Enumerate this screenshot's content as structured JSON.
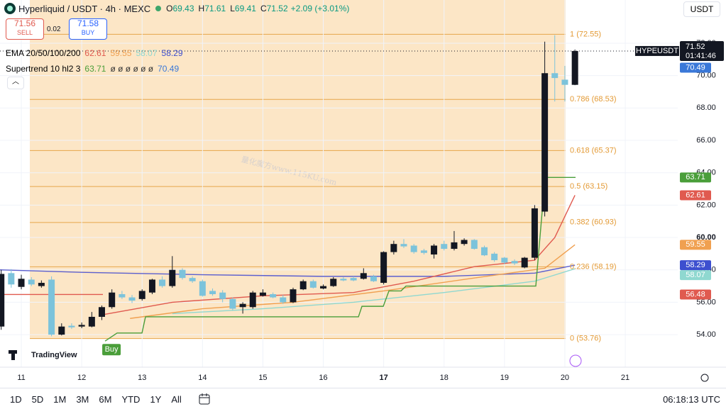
{
  "chart_data": {
    "type": "candlestick",
    "x": [
      10.667,
      10.833,
      11,
      11.167,
      11.333,
      11.5,
      11.667,
      11.833,
      12,
      12.167,
      12.333,
      12.5,
      12.667,
      12.833,
      13,
      13.167,
      13.333,
      13.5,
      13.667,
      13.833,
      14,
      14.167,
      14.333,
      14.5,
      14.667,
      14.833,
      15,
      15.167,
      15.333,
      15.5,
      15.667,
      15.833,
      16,
      16.167,
      16.333,
      16.5,
      16.667,
      16.833,
      17,
      17.167,
      17.333,
      17.5,
      17.667,
      17.833,
      18,
      18.167,
      18.333,
      18.5,
      18.667,
      18.833,
      19,
      19.167,
      19.333,
      19.5,
      19.667,
      19.833,
      20,
      20.167
    ],
    "open": [
      54.5,
      57.8,
      56.95,
      57.4,
      57.0,
      57.4,
      54.0,
      54.55,
      54.5,
      54.5,
      55.1,
      55.7,
      56.5,
      56.3,
      56.2,
      56.6,
      57.4,
      57.0,
      58.0,
      57.5,
      57.3,
      56.7,
      56.6,
      56.2,
      55.7,
      55.7,
      56.4,
      56.5,
      56.3,
      56.0,
      56.8,
      57.3,
      56.85,
      57.0,
      57.45,
      57.5,
      57.45,
      57.6,
      57.2,
      59.1,
      59.6,
      59.5,
      59.2,
      58.95,
      59.6,
      59.3,
      59.6,
      59.85,
      59.4,
      59.0,
      58.75,
      58.55,
      58.15,
      58.75,
      61.6,
      70.15,
      69.75,
      69.43
    ],
    "high": [
      58.0,
      58.05,
      57.7,
      57.55,
      57.35,
      57.6,
      54.7,
      54.7,
      54.75,
      55.4,
      55.8,
      56.8,
      56.7,
      56.45,
      56.8,
      57.45,
      57.6,
      58.85,
      58.1,
      57.6,
      57.4,
      56.85,
      56.75,
      56.3,
      56.0,
      56.7,
      56.8,
      56.6,
      56.45,
      56.9,
      57.4,
      57.4,
      57.1,
      57.55,
      57.55,
      57.6,
      58.1,
      57.7,
      59.15,
      59.8,
      59.9,
      59.6,
      59.3,
      59.6,
      59.8,
      60.4,
      59.95,
      59.9,
      59.5,
      59.1,
      58.8,
      58.65,
      58.8,
      62.0,
      72.1,
      72.5,
      70.6,
      71.61
    ],
    "low": [
      54.3,
      56.9,
      56.8,
      57.0,
      56.9,
      53.9,
      53.95,
      54.35,
      54.4,
      54.45,
      54.9,
      55.6,
      56.2,
      55.95,
      56.1,
      56.5,
      56.9,
      56.9,
      57.4,
      57.2,
      56.35,
      56.4,
      56.0,
      55.5,
      55.3,
      55.6,
      56.35,
      56.25,
      55.9,
      55.95,
      56.75,
      56.85,
      56.8,
      56.95,
      57.3,
      57.3,
      57.4,
      57.25,
      57.1,
      58.95,
      59.35,
      59.0,
      58.95,
      58.7,
      59.2,
      59.2,
      59.5,
      59.25,
      58.85,
      58.5,
      58.35,
      58.3,
      58.1,
      58.6,
      61.3,
      68.4,
      68.4,
      69.41
    ],
    "close": [
      57.75,
      57.1,
      57.45,
      57.1,
      57.2,
      54.0,
      54.5,
      54.45,
      54.6,
      55.1,
      55.7,
      56.6,
      56.3,
      56.1,
      56.7,
      57.4,
      57.0,
      58.0,
      57.5,
      57.3,
      56.4,
      56.5,
      56.2,
      55.6,
      55.9,
      56.6,
      56.6,
      56.3,
      56.0,
      56.8,
      57.3,
      56.9,
      57.0,
      57.45,
      57.35,
      57.35,
      57.8,
      57.3,
      59.1,
      59.6,
      59.45,
      59.1,
      59.05,
      59.5,
      59.3,
      59.7,
      59.85,
      59.3,
      58.9,
      58.6,
      58.45,
      58.4,
      58.75,
      61.8,
      70.15,
      69.85,
      69.43,
      71.52
    ],
    "up_color": "#131722",
    "down_color": "#7cc3db",
    "xlim": [
      10.647,
      21.869
    ],
    "xticks": [
      11,
      12,
      13,
      14,
      15,
      16,
      17,
      18,
      19,
      20,
      21
    ],
    "xtick_bold": 17,
    "ylim": [
      51.99,
      74.67
    ],
    "yticks": [
      {
        "value": 54,
        "label": "54.00"
      },
      {
        "value": 56,
        "label": "56.00"
      },
      {
        "value": 58,
        "label": "58.00"
      },
      {
        "value": 60,
        "label": "60.00"
      },
      {
        "value": 62,
        "label": "62.00"
      },
      {
        "value": 64,
        "label": "64.00"
      },
      {
        "value": 66,
        "label": "66.00"
      },
      {
        "value": 68,
        "label": "68.00"
      },
      {
        "value": 70,
        "label": "70.00"
      },
      {
        "value": 72,
        "label": "72.00"
      }
    ],
    "ytick_bold": 60,
    "fib": {
      "x": [
        11.141,
        20.013
      ],
      "fill": "#fce6c6",
      "line_color": "#e6a64a",
      "label_color": "#e39a35",
      "levels": [
        {
          "value": 72.55,
          "label": "1 (72.55)"
        },
        {
          "value": 68.53,
          "label": "0.786 (68.53)"
        },
        {
          "value": 65.37,
          "label": "0.618 (65.37)"
        },
        {
          "value": 63.15,
          "label": "0.5 (63.15)"
        },
        {
          "value": 60.93,
          "label": "0.382 (60.93)"
        },
        {
          "value": 58.19,
          "label": "0.236 (58.19)"
        },
        {
          "value": 53.76,
          "label": "0 (53.76)"
        }
      ]
    },
    "overlays": [
      {
        "color": "#5b5fcf",
        "x": [
          10.647,
          12,
          14,
          16,
          18,
          19.5,
          20.167
        ],
        "values": [
          58.0,
          57.85,
          57.7,
          57.6,
          57.6,
          57.8,
          58.29
        ]
      },
      {
        "color": "#8fd8d0",
        "x": [
          13.5,
          15,
          16.5,
          18,
          19.5,
          20.167
        ],
        "values": [
          55.3,
          55.6,
          56.0,
          56.6,
          57.3,
          58.07
        ]
      },
      {
        "color": "#f0a050",
        "x": [
          12.8,
          14,
          15.5,
          17,
          18.5,
          19.667,
          20.167
        ],
        "values": [
          55.0,
          55.6,
          56.0,
          56.7,
          57.5,
          58.1,
          59.55
        ]
      },
      {
        "color": "#e05a4f",
        "x": [
          12.3,
          13.5,
          15,
          16.5,
          17.5,
          18.5,
          19.5,
          19.833,
          20.167
        ],
        "values": [
          55.2,
          56.0,
          56.4,
          56.6,
          57.3,
          58.2,
          58.6,
          60.0,
          62.61
        ]
      },
      {
        "color": "#e05a4f",
        "x": [
          10.647,
          12.351
        ],
        "values": [
          56.48,
          56.48
        ]
      },
      {
        "color": "#4a9e3a",
        "x": [
          12.387,
          12.586,
          12.998,
          13.056,
          16.582,
          16.64,
          16.993,
          17.087,
          17.287,
          17.369,
          19.519,
          19.672,
          20.177
        ],
        "values": [
          53.6,
          54.1,
          54.1,
          55.1,
          55.1,
          55.75,
          55.75,
          56.7,
          56.7,
          57.0,
          57.0,
          63.71,
          63.71
        ]
      }
    ],
    "signal_label": "Buy",
    "signal_color": "#4a9e3a",
    "last_price": {
      "symbol": "HYPEUSDT",
      "value": 71.52,
      "countdown": "01:41:46"
    },
    "price_tags": [
      {
        "value": 70.49,
        "color": "#3a78d8"
      },
      {
        "value": 63.71,
        "color": "#4a9e3a"
      },
      {
        "value": 62.61,
        "color": "#e05a4f"
      },
      {
        "value": 59.55,
        "color": "#f0a050"
      },
      {
        "value": 58.29,
        "color": "#3d4fcf"
      },
      {
        "value": 58.07,
        "color": "#8fd8d0"
      },
      {
        "value": 56.48,
        "color": "#e05a4f"
      }
    ],
    "watermark": "量化魔方www.115KU.com"
  },
  "header": {
    "title": "Hyperliquid / USDT · 4h · MEXC",
    "ohlc": [
      {
        "key": "O",
        "value": 69.43
      },
      {
        "key": "H",
        "value": 71.61
      },
      {
        "key": "L",
        "value": 69.41
      },
      {
        "key": "C",
        "value": 71.52
      }
    ],
    "change": "+2.09 (+3.01%)",
    "currency": "USDT"
  },
  "trade": {
    "sell": {
      "price": 71.56,
      "label": "SELL"
    },
    "spread": 0.02,
    "buy": {
      "price": 71.58,
      "label": "BUY"
    }
  },
  "indicators": [
    {
      "label": "EMA 20/50/100/200",
      "items": [
        {
          "text": 62.61,
          "color": "#e05a4f"
        },
        {
          "text": 59.55,
          "color": "#f0a050"
        },
        {
          "text": 58.07,
          "color": "#8fd8d0"
        },
        {
          "text": 58.29,
          "color": "#3d4fcf"
        }
      ]
    },
    {
      "label": "Supertrend 10 hl2 3",
      "items": [
        {
          "text": 63.71,
          "color": "#4a9e3a"
        },
        {
          "text": "ø ø ø ø ø ø",
          "color": "#333333"
        },
        {
          "text": 70.49,
          "color": "#3a78d8"
        }
      ]
    }
  ],
  "branding": {
    "logo_text": "TradingView"
  },
  "toolbar": {
    "ranges": [
      "1D",
      "5D",
      "1M",
      "3M",
      "6M",
      "YTD",
      "1Y",
      "All"
    ],
    "time": "06:18:13 UTC"
  }
}
